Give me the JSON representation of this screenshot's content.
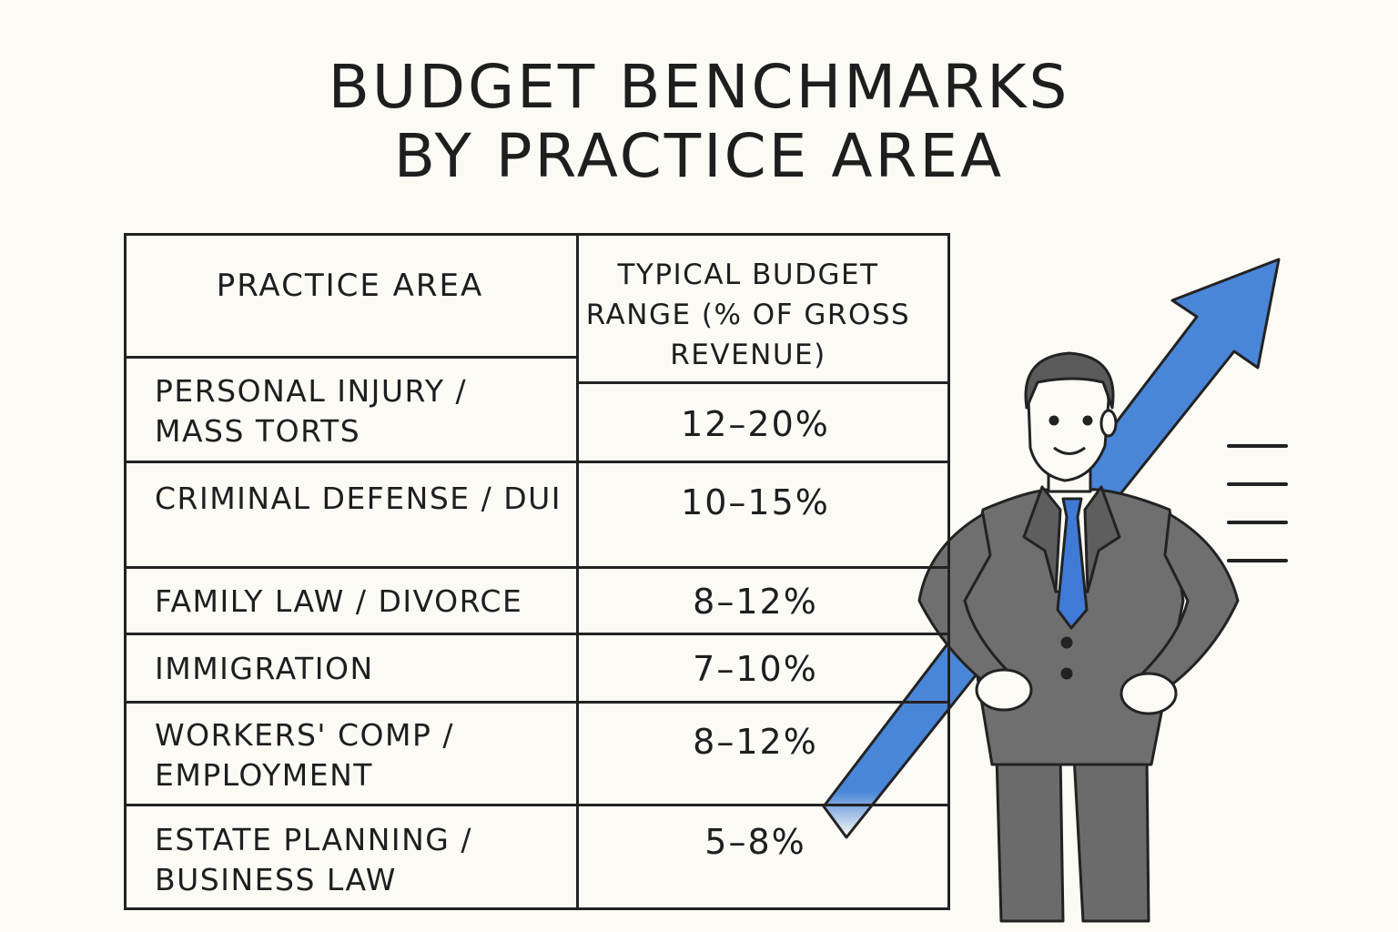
{
  "title": {
    "line1": "BUDGET BENCHMARKS",
    "line2": "BY PRACTICE AREA"
  },
  "table": {
    "header_practice": "PRACTICE AREA",
    "header_budget": "TYPICAL BUDGET RANGE (% OF GROSS REVENUE)",
    "rows": [
      {
        "area": "PERSONAL INJURY / MASS TORTS",
        "range": "12–20%"
      },
      {
        "area": "CRIMINAL DEFENSE / DUI",
        "range": "10–15%"
      },
      {
        "area": "FAMILY LAW / DIVORCE",
        "range": "8–12%"
      },
      {
        "area": "IMMIGRATION",
        "range": "7–10%"
      },
      {
        "area": "WORKERS' COMP / EMPLOYMENT",
        "range": "8–12%"
      },
      {
        "area": "ESTATE PLANNING / BUSINESS LAW",
        "range": "5–8%"
      }
    ]
  },
  "illustration": {
    "figure": "businessman-with-hands-on-hips",
    "arrow_icon": "upward-trend-arrow",
    "colors": {
      "arrow": "#4a86d8",
      "suit": "#6b6b6b",
      "tie": "#3f7ad6",
      "ink": "#222222"
    }
  }
}
